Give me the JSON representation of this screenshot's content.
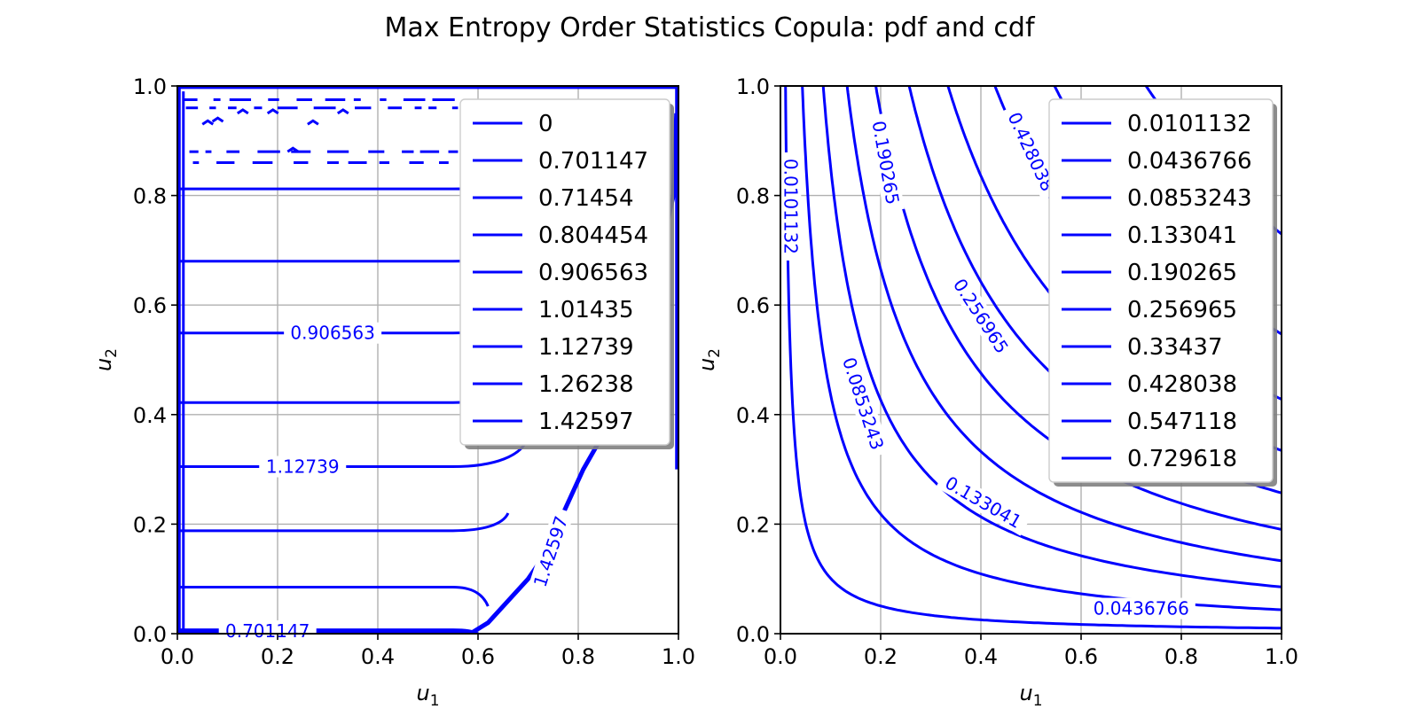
{
  "figure": {
    "title": "Max Entropy Order Statistics Copula: pdf and cdf"
  },
  "colors": {
    "contour": "#0000ff",
    "grid": "#b0b0b0",
    "axes": "#000000",
    "legend_border": "#cccccc",
    "legend_shadow": "#7f7f7f"
  },
  "chart_data": [
    {
      "type": "contour",
      "panel": "pdf",
      "xlabel_base": "u",
      "xlabel_sub": "1",
      "ylabel_base": "u",
      "ylabel_sub": "2",
      "xlim": [
        0.0,
        1.0
      ],
      "ylim": [
        0.0,
        1.0
      ],
      "xticks": [
        "0.0",
        "0.2",
        "0.4",
        "0.6",
        "0.8",
        "1.0"
      ],
      "yticks": [
        "0.0",
        "0.2",
        "0.4",
        "0.6",
        "0.8",
        "1.0"
      ],
      "grid": true,
      "legend_placement": "upper-right",
      "levels": [
        "0",
        "0.701147",
        "0.71454",
        "0.804454",
        "0.906563",
        "1.01435",
        "1.12739",
        "1.26238",
        "1.42597"
      ],
      "flat_levels": [
        0.007,
        0.085,
        0.188,
        0.305,
        0.422,
        0.549,
        0.68,
        0.812
      ],
      "bend_start_x": 0.55,
      "bend_end_x": [
        0.6,
        0.62,
        0.66,
        0.7,
        0.73,
        0.76,
        0.79,
        0.81
      ],
      "bend_end_y": [
        0.0,
        0.05,
        0.22,
        0.36,
        0.5,
        0.62,
        0.74,
        0.85
      ],
      "inline_labels": [
        {
          "text": "0.906563",
          "x": 0.31,
          "y": 0.549
        },
        {
          "text": "1.12739",
          "x": 0.25,
          "y": 0.305
        },
        {
          "text": "0.701147",
          "x": 0.18,
          "y": 0.005
        },
        {
          "text": "1.42597",
          "x": 0.745,
          "y": 0.15,
          "angle": -72
        }
      ]
    },
    {
      "type": "contour",
      "panel": "cdf",
      "xlabel_base": "u",
      "xlabel_sub": "1",
      "ylabel_base": "u",
      "ylabel_sub": "2",
      "xlim": [
        0.0,
        1.0
      ],
      "ylim": [
        0.0,
        1.0
      ],
      "xticks": [
        "0.0",
        "0.2",
        "0.4",
        "0.6",
        "0.8",
        "1.0"
      ],
      "yticks": [
        "0.0",
        "0.2",
        "0.4",
        "0.6",
        "0.8",
        "1.0"
      ],
      "grid": true,
      "legend_placement": "upper-right",
      "levels": [
        "0.0101132",
        "0.0436766",
        "0.0853243",
        "0.133041",
        "0.190265",
        "0.256965",
        "0.33437",
        "0.428038",
        "0.547118",
        "0.729618"
      ],
      "level_values": [
        0.0101132,
        0.0436766,
        0.0853243,
        0.133041,
        0.190265,
        0.256965,
        0.33437,
        0.428038,
        0.547118,
        0.729618
      ],
      "inline_labels": [
        {
          "text": "0.0101132",
          "x": 0.02,
          "y": 0.78,
          "angle": 90
        },
        {
          "text": "0.190265",
          "x": 0.21,
          "y": 0.86,
          "angle": 80
        },
        {
          "text": "0.428038",
          "x": 0.5,
          "y": 0.88,
          "angle": 65
        },
        {
          "text": "0.256965",
          "x": 0.4,
          "y": 0.58,
          "angle": 57
        },
        {
          "text": "0.0853243",
          "x": 0.165,
          "y": 0.42,
          "angle": 72
        },
        {
          "text": "0.133041",
          "x": 0.405,
          "y": 0.24,
          "angle": 30
        },
        {
          "text": "0.0436766",
          "x": 0.72,
          "y": 0.046
        }
      ]
    }
  ]
}
